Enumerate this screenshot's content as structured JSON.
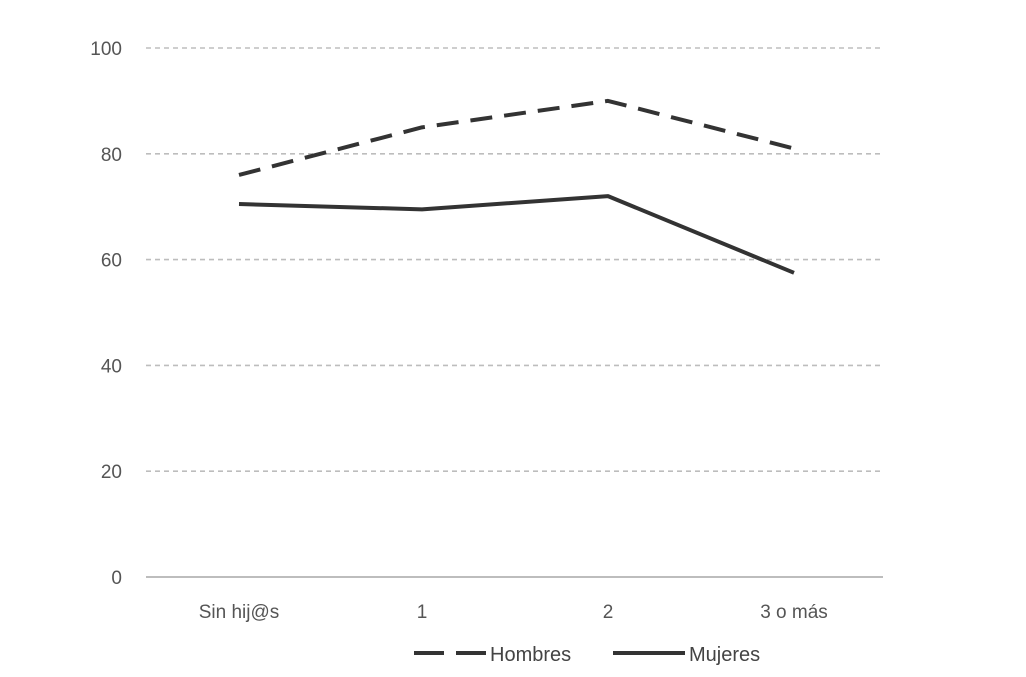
{
  "chart_data": {
    "type": "line",
    "categories": [
      "Sin hij@s",
      "1",
      "2",
      "3 o más"
    ],
    "series": [
      {
        "name": "Hombres",
        "values": [
          76,
          85,
          90,
          81
        ],
        "style": "dashed",
        "color": "#333333"
      },
      {
        "name": "Mujeres",
        "values": [
          70.5,
          69.5,
          72,
          57.5
        ],
        "style": "solid",
        "color": "#333333"
      }
    ],
    "yticks": [
      0,
      20,
      40,
      60,
      80,
      100
    ],
    "ylim": [
      0,
      100
    ],
    "grid": true,
    "legend_position": "bottom",
    "colors": {
      "grid": "#bdbdbd",
      "axis": "#bdbdbd",
      "text": "#555555"
    }
  }
}
